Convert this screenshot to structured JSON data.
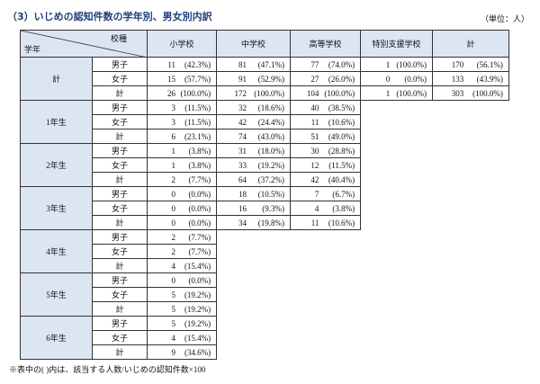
{
  "header": {
    "title": "（3）いじめの認知件数の学年別、男女別内訳",
    "unit": "（単位：人）"
  },
  "table": {
    "corner_top": "校種",
    "corner_bottom": "学年",
    "columns": [
      "小学校",
      "中学校",
      "高等学校",
      "特別支援学校",
      "計"
    ],
    "groups": [
      {
        "grade": "計",
        "rows": [
          {
            "sex": "男子",
            "cells": [
              {
                "n": "11",
                "p": "(42.3%)"
              },
              {
                "n": "81",
                "p": "(47.1%)"
              },
              {
                "n": "77",
                "p": "(74.0%)"
              },
              {
                "n": "1",
                "p": "(100.0%)"
              },
              {
                "n": "170",
                "p": "(56.1%)"
              }
            ]
          },
          {
            "sex": "女子",
            "cells": [
              {
                "n": "15",
                "p": "(57.7%)"
              },
              {
                "n": "91",
                "p": "(52.9%)"
              },
              {
                "n": "27",
                "p": "(26.0%)"
              },
              {
                "n": "0",
                "p": "(0.0%)"
              },
              {
                "n": "133",
                "p": "(43.9%)"
              }
            ]
          },
          {
            "sex": "計",
            "cells": [
              {
                "n": "26",
                "p": "(100.0%)"
              },
              {
                "n": "172",
                "p": "(100.0%)"
              },
              {
                "n": "104",
                "p": "(100.0%)"
              },
              {
                "n": "1",
                "p": "(100.0%)"
              },
              {
                "n": "303",
                "p": "(100.0%)"
              }
            ]
          }
        ]
      },
      {
        "grade": "1年生",
        "rows": [
          {
            "sex": "男子",
            "cells": [
              {
                "n": "3",
                "p": "(11.5%)"
              },
              {
                "n": "32",
                "p": "(18.6%)"
              },
              {
                "n": "40",
                "p": "(38.5%)"
              }
            ]
          },
          {
            "sex": "女子",
            "cells": [
              {
                "n": "3",
                "p": "(11.5%)"
              },
              {
                "n": "42",
                "p": "(24.4%)"
              },
              {
                "n": "11",
                "p": "(10.6%)"
              }
            ]
          },
          {
            "sex": "計",
            "cells": [
              {
                "n": "6",
                "p": "(23.1%)"
              },
              {
                "n": "74",
                "p": "(43.0%)"
              },
              {
                "n": "51",
                "p": "(49.0%)"
              }
            ]
          }
        ]
      },
      {
        "grade": "2年生",
        "rows": [
          {
            "sex": "男子",
            "cells": [
              {
                "n": "1",
                "p": "(3.8%)"
              },
              {
                "n": "31",
                "p": "(18.0%)"
              },
              {
                "n": "30",
                "p": "(28.8%)"
              }
            ]
          },
          {
            "sex": "女子",
            "cells": [
              {
                "n": "1",
                "p": "(3.8%)"
              },
              {
                "n": "33",
                "p": "(19.2%)"
              },
              {
                "n": "12",
                "p": "(11.5%)"
              }
            ]
          },
          {
            "sex": "計",
            "cells": [
              {
                "n": "2",
                "p": "(7.7%)"
              },
              {
                "n": "64",
                "p": "(37.2%)"
              },
              {
                "n": "42",
                "p": "(40.4%)"
              }
            ]
          }
        ]
      },
      {
        "grade": "3年生",
        "rows": [
          {
            "sex": "男子",
            "cells": [
              {
                "n": "0",
                "p": "(0.0%)"
              },
              {
                "n": "18",
                "p": "(10.5%)"
              },
              {
                "n": "7",
                "p": "(6.7%)"
              }
            ]
          },
          {
            "sex": "女子",
            "cells": [
              {
                "n": "0",
                "p": "(0.0%)"
              },
              {
                "n": "16",
                "p": "(9.3%)"
              },
              {
                "n": "4",
                "p": "(3.8%)"
              }
            ]
          },
          {
            "sex": "計",
            "cells": [
              {
                "n": "0",
                "p": "(0.0%)"
              },
              {
                "n": "34",
                "p": "(19.8%)"
              },
              {
                "n": "11",
                "p": "(10.6%)"
              }
            ]
          }
        ]
      },
      {
        "grade": "4年生",
        "rows": [
          {
            "sex": "男子",
            "cells": [
              {
                "n": "2",
                "p": "(7.7%)"
              }
            ]
          },
          {
            "sex": "女子",
            "cells": [
              {
                "n": "2",
                "p": "(7.7%)"
              }
            ]
          },
          {
            "sex": "計",
            "cells": [
              {
                "n": "4",
                "p": "(15.4%)"
              }
            ]
          }
        ]
      },
      {
        "grade": "5年生",
        "rows": [
          {
            "sex": "男子",
            "cells": [
              {
                "n": "0",
                "p": "(0.0%)"
              }
            ]
          },
          {
            "sex": "女子",
            "cells": [
              {
                "n": "5",
                "p": "(19.2%)"
              }
            ]
          },
          {
            "sex": "計",
            "cells": [
              {
                "n": "5",
                "p": "(19.2%)"
              }
            ]
          }
        ]
      },
      {
        "grade": "6年生",
        "rows": [
          {
            "sex": "男子",
            "cells": [
              {
                "n": "5",
                "p": "(19.2%)"
              }
            ]
          },
          {
            "sex": "女子",
            "cells": [
              {
                "n": "4",
                "p": "(15.4%)"
              }
            ]
          },
          {
            "sex": "計",
            "cells": [
              {
                "n": "9",
                "p": "(34.6%)"
              }
            ]
          }
        ]
      }
    ]
  },
  "footnote": "※表中の( )内は、該当する人数/いじめの認知件数×100"
}
